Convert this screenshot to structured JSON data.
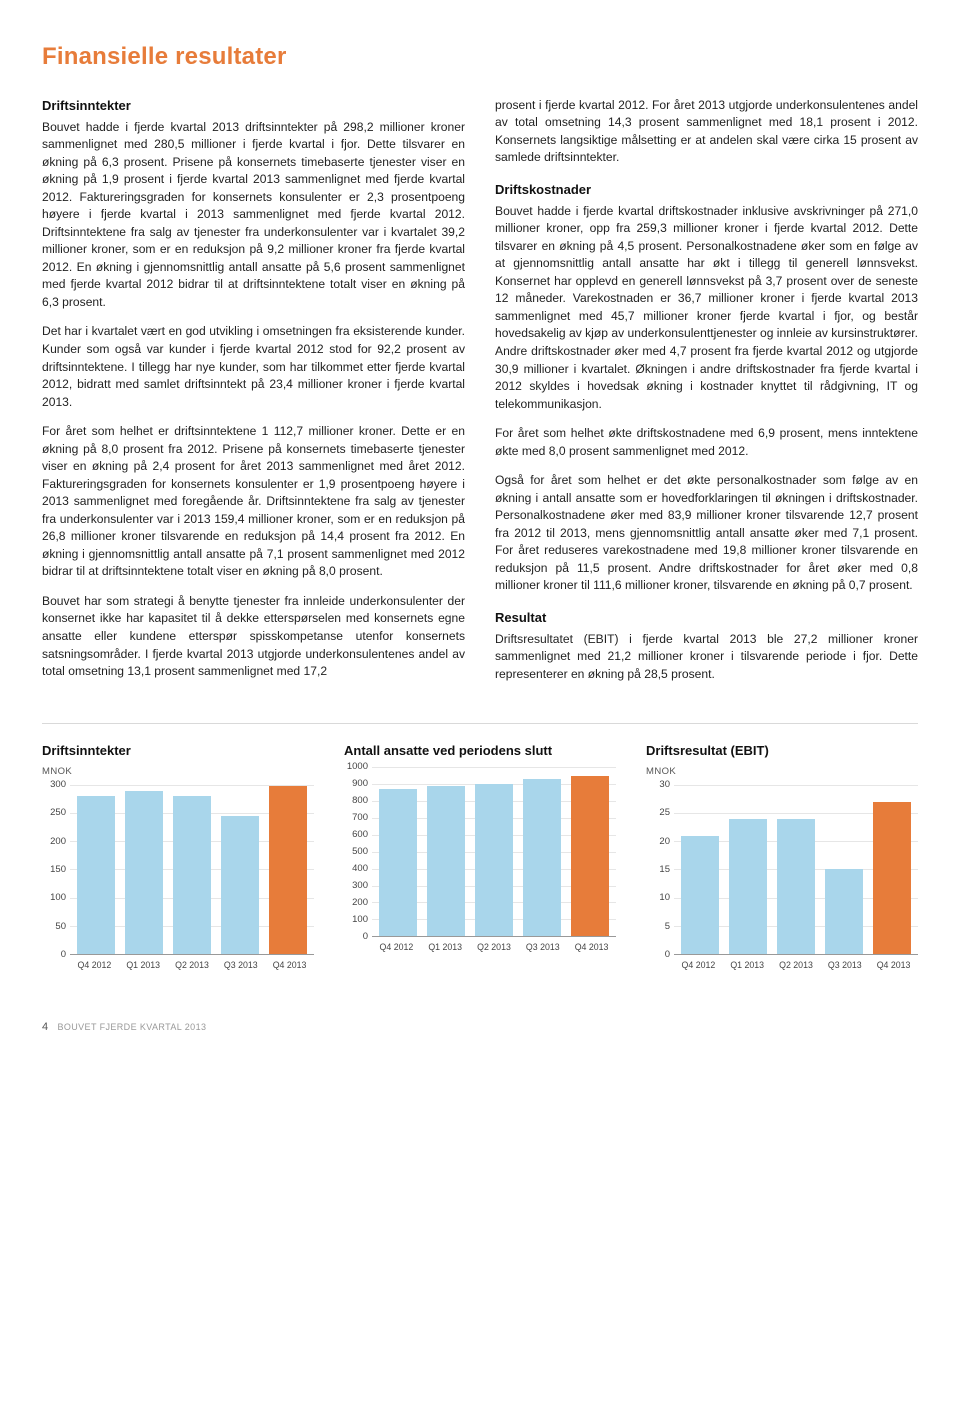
{
  "title": "Finansielle resultater",
  "title_color": "#e77c3a",
  "left": {
    "h1": "Driftsinntekter",
    "p1": "Bouvet hadde i fjerde kvartal 2013 driftsinntekter på 298,2 millioner kroner sammenlignet med 280,5 millioner i fjerde kvartal i fjor. Dette tilsvarer en økning på 6,3 prosent. Prisene på konsernets timebaserte tjenester viser en økning på 1,9 prosent i fjerde kvartal 2013 sammenlignet med fjerde kvartal 2012. Faktureringsgraden for konsernets konsulenter er 2,3 prosentpoeng høyere i fjerde kvartal i 2013 sammenlignet med fjerde kvartal 2012. Driftsinntektene fra salg av tjenester fra underkonsulenter var i kvartalet 39,2 millioner kroner, som er en reduksjon på 9,2 millioner kroner fra fjerde kvartal 2012. En økning i gjennomsnittlig antall ansatte på 5,6 prosent sammenlignet med fjerde kvartal 2012 bidrar til at driftsinntektene totalt viser en økning på 6,3 prosent.",
    "p2": "Det har i kvartalet vært en god utvikling i omsetningen fra eksisterende kunder. Kunder som også var kunder i fjerde kvartal 2012 stod for 92,2 prosent av driftsinntektene. I tillegg har nye kunder, som har tilkommet etter fjerde kvartal 2012, bidratt med samlet driftsinntekt på 23,4 millioner kroner i fjerde kvartal 2013.",
    "p3": "For året som helhet er driftsinntektene 1 112,7 millioner kroner. Dette er en økning på 8,0 prosent fra 2012. Prisene på konsernets timebaserte tjenester viser en økning på 2,4 prosent for året 2013 sammenlignet med året 2012. Faktureringsgraden for konsernets konsulenter er 1,9 prosentpoeng høyere i 2013 sammenlignet med foregående år. Driftsinntektene fra salg av tjenester fra underkonsulenter var i 2013 159,4 millioner kroner, som er en reduksjon på 26,8 millioner kroner tilsvarende en reduksjon på 14,4 prosent fra 2012. En økning i gjennomsnittlig antall ansatte på 7,1 prosent sammenlignet med 2012 bidrar til at driftsinntektene totalt viser en økning på 8,0 prosent.",
    "p4": "Bouvet har som strategi å benytte tjenester fra innleide underkonsulenter der konsernet ikke har kapasitet til å dekke etterspørselen med konsernets egne ansatte eller kundene etterspør spisskompetanse utenfor konsernets satsningsområder. I fjerde kvartal 2013 utgjorde underkonsulentenes andel av total omsetning 13,1 prosent sammenlignet med 17,2"
  },
  "right": {
    "p1": "prosent i fjerde kvartal 2012. For året 2013 utgjorde underkonsulentenes andel av total omsetning 14,3 prosent sammenlignet med 18,1 prosent i 2012. Konsernets langsiktige målsetting er at andelen skal være cirka 15 prosent av samlede driftsinntekter.",
    "h2": "Driftskostnader",
    "p2": "Bouvet hadde i fjerde kvartal driftskostnader inklusive avskrivninger på 271,0 millioner kroner, opp fra 259,3 millioner kroner i fjerde kvartal 2012. Dette tilsvarer en økning på 4,5 prosent. Personalkostnadene øker som en følge av at gjennomsnittlig antall ansatte har økt i tillegg til generell lønnsvekst. Konsernet har opplevd en generell lønnsvekst på 3,7 prosent over de seneste 12 måneder. Varekostnaden er 36,7 millioner kroner i fjerde kvartal 2013 sammenlignet med 45,7 millioner kroner fjerde kvartal i fjor, og består hovedsakelig av kjøp av underkonsulenttjenester og innleie av kursinstruktører. Andre driftskostnader øker med 4,7 prosent fra fjerde kvartal 2012 og utgjorde 30,9 millioner i kvartalet. Økningen i andre driftskostnader fra fjerde kvartal i 2012 skyldes i hovedsak økning i kostnader knyttet til rådgivning, IT og telekommunikasjon.",
    "p3": "For året som helhet økte driftskostnadene med 6,9 prosent, mens inntektene økte med 8,0 prosent sammenlignet med 2012.",
    "p4": "Også for året som helhet er det økte personalkostnader som følge av en økning i antall ansatte som er hovedforklaringen til økningen i driftskostnader. Personalkostnadene øker med 83,9 millioner kroner tilsvarende 12,7 prosent fra 2012 til 2013, mens gjennomsnittlig antall ansatte øker med 7,1 prosent. For året reduseres varekostnadene med 19,8 millioner kroner tilsvarende en reduksjon på 11,5 prosent. Andre driftskostnader for året øker med 0,8 millioner kroner til 111,6 millioner kroner, tilsvarende en økning på 0,7 prosent.",
    "h3": "Resultat",
    "p5": "Driftsresultatet (EBIT) i fjerde kvartal 2013 ble 27,2 millioner kroner sammenlignet med 21,2 millioner kroner i tilsvarende periode i fjor. Dette representerer en økning på 28,5 prosent."
  },
  "chart_colors": {
    "bar": "#a9d6eb",
    "bar_hi": "#e77c3a",
    "grid": "#e6e6e6"
  },
  "charts": {
    "c1": {
      "title": "Driftsinntekter",
      "sub": "MNOK",
      "ymax": 300,
      "ystep": 50,
      "categories": [
        "Q4 2012",
        "Q1 2013",
        "Q2 2013",
        "Q3 2013",
        "Q4 2013"
      ],
      "values": [
        280,
        290,
        280,
        245,
        298
      ],
      "highlight_last": true
    },
    "c2": {
      "title": "Antall ansatte ved periodens slutt",
      "sub": "",
      "ymax": 1000,
      "ystep": 100,
      "categories": [
        "Q4 2012",
        "Q1 2013",
        "Q2 2013",
        "Q3 2013",
        "Q4 2013"
      ],
      "values": [
        870,
        890,
        900,
        930,
        950
      ],
      "highlight_last": true
    },
    "c3": {
      "title": "Driftsresultat (EBIT)",
      "sub": "MNOK",
      "ymax": 30,
      "ystep": 5,
      "categories": [
        "Q4 2012",
        "Q1 2013",
        "Q2 2013",
        "Q3 2013",
        "Q4 2013"
      ],
      "values": [
        21,
        24,
        24,
        15,
        27
      ],
      "highlight_last": true
    }
  },
  "footer": {
    "page": "4",
    "text": "BOUVET FJERDE KVARTAL 2013"
  }
}
